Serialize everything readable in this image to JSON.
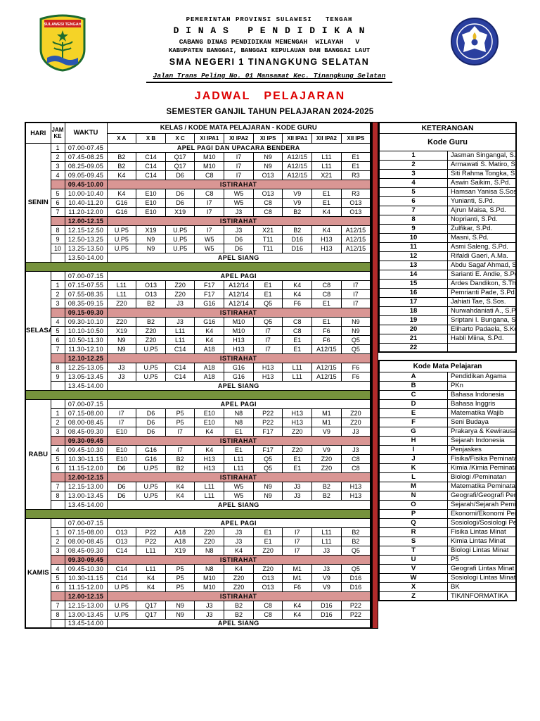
{
  "colors": {
    "break_bg": "#d99694",
    "red_bar": "#b12a2a",
    "green_sep": "#76923c",
    "title_red": "#dd0000"
  },
  "letterhead": {
    "line1": "PEMERINTAH PROVINSI SULAWESI   TENGAH",
    "line2": "D I N A S   P E N D I D I K A N",
    "line3": "CABANG DINAS PENDIDIKAN MENENGAH  WILAYAH   V",
    "line4": "KABUPATEN BANGGAI, BANGGAI KEPULAUAN DAN BANGGAI LAUT",
    "line5": "SMA NEGERI 1 TINANGKUNG SELATAN",
    "line6": "Jalan Trans Peling No. 01 Mansamat Kec. Tinangkung Selatan"
  },
  "title": "JADWAL   PELAJARAN",
  "subtitle": "SEMESTER GANJIL TAHUN PELAJARAN 2024-2025",
  "table": {
    "headers": {
      "hari": "HARI",
      "jam": "JAM KE",
      "waktu": "WAKTU",
      "kelas": "KELAS / KODE MATA PELAJARAN - KODE GURU"
    },
    "classes": [
      "X A",
      "X B",
      "X C",
      "XI IPA1",
      "XI IPA2",
      "XI IPS",
      "XII IPA1",
      "XII IPA2",
      "XII IPS"
    ],
    "days": [
      {
        "name": "SENIN",
        "rows": [
          {
            "type": "span",
            "jam": "1",
            "waktu": "07.00-07.45",
            "label": "APEL PAGI DAN UPACARA BENDERA"
          },
          {
            "type": "periods",
            "jam": "2",
            "waktu": "07.45-08.25",
            "cells": [
              "B2",
              "C14",
              "Q17",
              "M10",
              "I7",
              "N9",
              "A12/15",
              "L11",
              "E1"
            ]
          },
          {
            "type": "periods",
            "jam": "3",
            "waktu": "08.25-09.05",
            "cells": [
              "B2",
              "C14",
              "Q17",
              "M10",
              "I7",
              "N9",
              "A12/15",
              "L11",
              "E1"
            ]
          },
          {
            "type": "periods",
            "jam": "4",
            "waktu": "09.05-09.45",
            "cells": [
              "K4",
              "C14",
              "D6",
              "C8",
              "I7",
              "O13",
              "A12/15",
              "X21",
              "R3"
            ]
          },
          {
            "type": "break",
            "jam": "",
            "waktu": "09.45-10.00",
            "label": "ISTIRAHAT"
          },
          {
            "type": "periods",
            "jam": "5",
            "waktu": "10.00-10.40",
            "cells": [
              "K4",
              "E10",
              "D6",
              "C8",
              "W5",
              "O13",
              "V9",
              "E1",
              "R3"
            ]
          },
          {
            "type": "periods",
            "jam": "6",
            "waktu": "10.40-11.20",
            "cells": [
              "G16",
              "E10",
              "D6",
              "I7",
              "W5",
              "C8",
              "V9",
              "E1",
              "O13"
            ]
          },
          {
            "type": "periods",
            "jam": "7",
            "waktu": "11.20-12.00",
            "cells": [
              "G16",
              "E10",
              "X19",
              "I7",
              "J3",
              "C8",
              "B2",
              "K4",
              "O13"
            ]
          },
          {
            "type": "break",
            "jam": "",
            "waktu": "12.00-12.15",
            "label": "ISTIRAHAT"
          },
          {
            "type": "periods",
            "jam": "8",
            "waktu": "12.15-12.50",
            "cells": [
              "U.P5",
              "X19",
              "U.P5",
              "I7",
              "J3",
              "X21",
              "B2",
              "K4",
              "A12/15"
            ]
          },
          {
            "type": "periods",
            "jam": "9",
            "waktu": "12.50-13.25",
            "cells": [
              "U.P5",
              "N9",
              "U.P5",
              "W5",
              "D6",
              "T11",
              "D16",
              "H13",
              "A12/15"
            ]
          },
          {
            "type": "periods",
            "jam": "10",
            "waktu": "13.25-13.50",
            "cells": [
              "U.P5",
              "N9",
              "U.P5",
              "W5",
              "D6",
              "T11",
              "D16",
              "H13",
              "A12/15"
            ]
          },
          {
            "type": "span",
            "jam": "",
            "waktu": "13.50-14.00",
            "label": "APEL SIANG"
          }
        ]
      },
      {
        "name": "SELASA",
        "rows": [
          {
            "type": "span",
            "jam": "",
            "waktu": "07.00-07.15",
            "label": "APEL PAGI"
          },
          {
            "type": "periods",
            "jam": "1",
            "waktu": "07.15-07.55",
            "cells": [
              "L11",
              "O13",
              "Z20",
              "F17",
              "A12/14",
              "E1",
              "K4",
              "C8",
              "I7"
            ]
          },
          {
            "type": "periods",
            "jam": "2",
            "waktu": "07.55-08.35",
            "cells": [
              "L11",
              "O13",
              "Z20",
              "F17",
              "A12/14",
              "E1",
              "K4",
              "C8",
              "I7"
            ]
          },
          {
            "type": "periods",
            "jam": "3",
            "waktu": "08.35-09.15",
            "cells": [
              "Z20",
              "B2",
              "J3",
              "G16",
              "A12/14",
              "Q5",
              "F6",
              "E1",
              "I7"
            ]
          },
          {
            "type": "break",
            "jam": "",
            "waktu": "09.15-09.30",
            "label": "ISTIRAHAT"
          },
          {
            "type": "periods",
            "jam": "4",
            "waktu": "09.30-10.10",
            "cells": [
              "Z20",
              "B2",
              "J3",
              "G16",
              "M10",
              "Q5",
              "C8",
              "E1",
              "N9"
            ]
          },
          {
            "type": "periods",
            "jam": "5",
            "waktu": "10.10-10.50",
            "cells": [
              "X19",
              "Z20",
              "L11",
              "K4",
              "M10",
              "I7",
              "C8",
              "F6",
              "N9"
            ]
          },
          {
            "type": "periods",
            "jam": "6",
            "waktu": "10.50-11.30",
            "cells": [
              "N9",
              "Z20",
              "L11",
              "K4",
              "H13",
              "I7",
              "E1",
              "F6",
              "Q5"
            ]
          },
          {
            "type": "periods",
            "jam": "7",
            "waktu": "11.30-12.10",
            "cells": [
              "N9",
              "U.P5",
              "C14",
              "A18",
              "H13",
              "I7",
              "E1",
              "A12/15",
              "Q5"
            ]
          },
          {
            "type": "break",
            "jam": "",
            "waktu": "12.10-12.25",
            "label": "ISTIRAHAT"
          },
          {
            "type": "periods",
            "jam": "8",
            "waktu": "12.25-13.05",
            "cells": [
              "J3",
              "U.P5",
              "C14",
              "A18",
              "G16",
              "H13",
              "L11",
              "A12/15",
              "F6"
            ]
          },
          {
            "type": "periods",
            "jam": "9",
            "waktu": "13.05-13.45",
            "cells": [
              "J3",
              "U.P5",
              "C14",
              "A18",
              "G16",
              "H13",
              "L11",
              "A12/15",
              "F6"
            ]
          },
          {
            "type": "span",
            "jam": "",
            "waktu": "13.45-14.00",
            "label": "APEL SIANG"
          }
        ]
      },
      {
        "name": "RABU",
        "rows": [
          {
            "type": "span",
            "jam": "",
            "waktu": "07.00-07.15",
            "label": "APEL PAGI"
          },
          {
            "type": "periods",
            "jam": "1",
            "waktu": "07.15-08.00",
            "cells": [
              "I7",
              "D6",
              "P5",
              "E10",
              "N8",
              "P22",
              "H13",
              "M1",
              "Z20"
            ]
          },
          {
            "type": "periods",
            "jam": "2",
            "waktu": "08.00-08.45",
            "cells": [
              "I7",
              "D6",
              "P5",
              "E10",
              "N8",
              "P22",
              "H13",
              "M1",
              "Z20"
            ]
          },
          {
            "type": "periods",
            "jam": "3",
            "waktu": "08.45-09.30",
            "cells": [
              "E10",
              "D6",
              "I7",
              "K4",
              "E1",
              "F17",
              "Z20",
              "V9",
              "J3"
            ]
          },
          {
            "type": "break",
            "jam": "",
            "waktu": "09.30-09.45",
            "label": "ISTIRAHAT"
          },
          {
            "type": "periods",
            "jam": "4",
            "waktu": "09.45-10.30",
            "cells": [
              "E10",
              "G16",
              "I7",
              "K4",
              "E1",
              "F17",
              "Z20",
              "V9",
              "J3"
            ]
          },
          {
            "type": "periods",
            "jam": "5",
            "waktu": "10.30-11.15",
            "cells": [
              "E10",
              "G16",
              "B2",
              "H13",
              "L11",
              "Q5",
              "E1",
              "Z20",
              "C8"
            ]
          },
          {
            "type": "periods",
            "jam": "6",
            "waktu": "11.15-12.00",
            "cells": [
              "D6",
              "U.P5",
              "B2",
              "H13",
              "L11",
              "Q5",
              "E1",
              "Z20",
              "C8"
            ]
          },
          {
            "type": "break",
            "jam": "",
            "waktu": "12.00-12.15",
            "label": "ISTIRAHAT"
          },
          {
            "type": "periods",
            "jam": "7",
            "waktu": "12.15-13.00",
            "cells": [
              "D6",
              "U.P5",
              "K4",
              "L11",
              "W5",
              "N9",
              "J3",
              "B2",
              "H13"
            ]
          },
          {
            "type": "periods",
            "jam": "8",
            "waktu": "13.00-13.45",
            "cells": [
              "D6",
              "U.P5",
              "K4",
              "L11",
              "W5",
              "N9",
              "J3",
              "B2",
              "H13"
            ]
          },
          {
            "type": "span",
            "jam": "",
            "waktu": "13.45-14.00",
            "label": "APEL SIANG"
          }
        ]
      },
      {
        "name": "KAMIS",
        "rows": [
          {
            "type": "span",
            "jam": "",
            "waktu": "07.00-07.15",
            "label": "APEL PAGI"
          },
          {
            "type": "periods",
            "jam": "1",
            "waktu": "07.15-08.00",
            "cells": [
              "O13",
              "P22",
              "A18",
              "Z20",
              "J3",
              "E1",
              "I7",
              "L11",
              "B2"
            ]
          },
          {
            "type": "periods",
            "jam": "2",
            "waktu": "08.00-08.45",
            "cells": [
              "O13",
              "P22",
              "A18",
              "Z20",
              "J3",
              "E1",
              "I7",
              "L11",
              "B2"
            ]
          },
          {
            "type": "periods",
            "jam": "3",
            "waktu": "08.45-09.30",
            "cells": [
              "C14",
              "L11",
              "X19",
              "N8",
              "K4",
              "Z20",
              "I7",
              "J3",
              "Q5"
            ]
          },
          {
            "type": "break",
            "jam": "",
            "waktu": "09.30-09.45",
            "label": "ISTIRAHAT"
          },
          {
            "type": "periods",
            "jam": "4",
            "waktu": "09.45-10.30",
            "cells": [
              "C14",
              "L11",
              "P5",
              "N8",
              "K4",
              "Z20",
              "M1",
              "J3",
              "Q5"
            ]
          },
          {
            "type": "periods",
            "jam": "5",
            "waktu": "10.30-11.15",
            "cells": [
              "C14",
              "K4",
              "P5",
              "M10",
              "Z20",
              "O13",
              "M1",
              "V9",
              "D16"
            ]
          },
          {
            "type": "periods",
            "jam": "6",
            "waktu": "11.15-12.00",
            "cells": [
              "U.P5",
              "K4",
              "P5",
              "M10",
              "Z20",
              "O13",
              "F6",
              "V9",
              "D16"
            ]
          },
          {
            "type": "break",
            "jam": "",
            "waktu": "12.00-12.15",
            "label": "ISTIRAHAT"
          },
          {
            "type": "periods",
            "jam": "7",
            "waktu": "12.15-13.00",
            "cells": [
              "U.P5",
              "Q17",
              "N9",
              "J3",
              "B2",
              "C8",
              "K4",
              "D16",
              "P22"
            ]
          },
          {
            "type": "periods",
            "jam": "8",
            "waktu": "13.00-13.45",
            "cells": [
              "U.P5",
              "Q17",
              "N9",
              "J3",
              "B2",
              "C8",
              "K4",
              "D16",
              "P22"
            ]
          },
          {
            "type": "span",
            "jam": "",
            "waktu": "13.45-14.00",
            "label": "APEL SIANG"
          }
        ]
      }
    ]
  },
  "keterangan": {
    "title": "KETERANGAN",
    "guru_title": "Kode Guru",
    "guru": [
      "Jasman Singangal, S.Pd.",
      "Armawati S. Matiro, S.Pd.",
      "Siti Rahma Tongka, S.Pd.",
      "Aswin Saikim, S.Pd.",
      "Hamsan Yanisa S.Sos.",
      "Yunianti, S.Pd.",
      "Ajrun Maisa, S.Pd.",
      "Noprianti, S.Pd.",
      "Zulfikar, S.Pd.",
      "Masni, S.Pd.",
      "Asmi Saleng, S.Pd.",
      "Rifaldi Gaeri, A.Ma.",
      "Abdu Sagaf Ahmad, S.Pd.",
      "Sarianti E. Andie, S.Pd.",
      "Ardes Dandikon, S.Th.",
      "Pemrianti Pade, S.Pd.",
      "Jahiati Tae, S.Sos.",
      "Nurwahdaniati A., S.Pd.",
      "Sriptani I. Bungana, S.Pd.",
      "Eliharto Padaela, S.Kom",
      "Habli Miina, S.Pd.",
      ""
    ],
    "mapel_title": "Kode Mata Pelajaran",
    "mapel": [
      {
        "code": "A",
        "name": "Pendidikan Agama"
      },
      {
        "code": "B",
        "name": "PKn"
      },
      {
        "code": "C",
        "name": "Bahasa Indonesia"
      },
      {
        "code": "D",
        "name": "Bahasa Inggris"
      },
      {
        "code": "E",
        "name": "Matematika Wajib"
      },
      {
        "code": "F",
        "name": "Seni Budaya"
      },
      {
        "code": "G",
        "name": "Prakarya & Kewirausahaan"
      },
      {
        "code": "H",
        "name": "Sejarah Indonesia"
      },
      {
        "code": "I",
        "name": "Penjaskes"
      },
      {
        "code": "J",
        "name": "Fisika/Fisika Peminatan"
      },
      {
        "code": "K",
        "name": "Kimia /Kimia Peminatan"
      },
      {
        "code": "L",
        "name": "Biologi /Peminatan"
      },
      {
        "code": "M",
        "name": "Matematika Peminatan"
      },
      {
        "code": "N",
        "name": "Geografi/Geografi Peminatan"
      },
      {
        "code": "O",
        "name": "Sejarah/Sejarah Peminatan"
      },
      {
        "code": "P",
        "name": "Ekonomi/Ekonomi Peminatan"
      },
      {
        "code": "Q",
        "name": "Sosiologi/Sosiologi Peminatan"
      },
      {
        "code": "R",
        "name": "Fisika Lintas Minat"
      },
      {
        "code": "S",
        "name": "Kimia Lintas Minat"
      },
      {
        "code": "T",
        "name": "Biologi Lintas Minat"
      },
      {
        "code": "U",
        "name": "P5"
      },
      {
        "code": "V",
        "name": "Geografi Lintas Minat"
      },
      {
        "code": "W",
        "name": "Sosiologi Lintas Minat"
      },
      {
        "code": "X",
        "name": "BK"
      },
      {
        "code": "Z",
        "name": "TIK/INFORMATIKA"
      }
    ]
  }
}
